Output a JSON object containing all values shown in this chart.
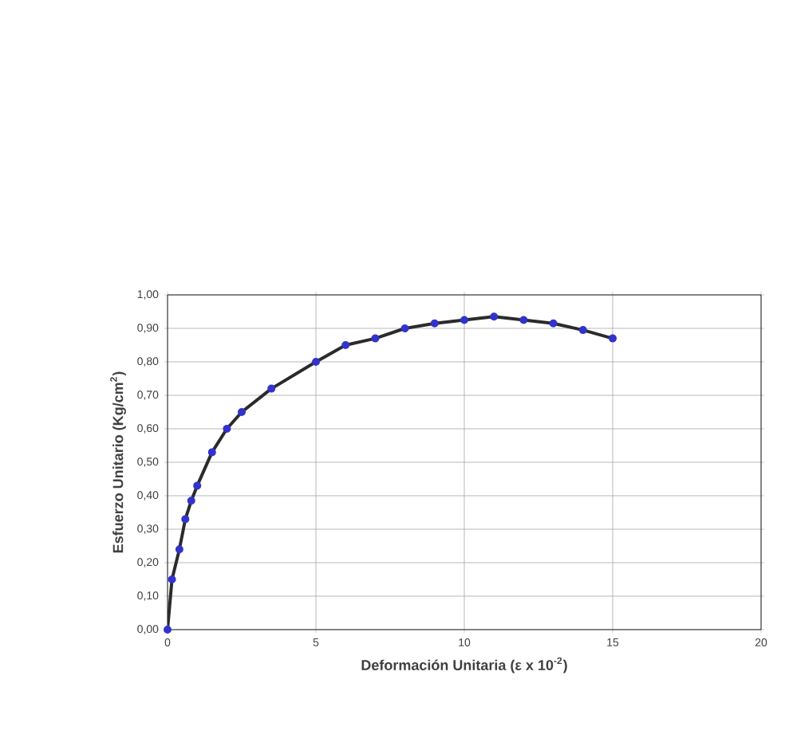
{
  "chart_data": {
    "type": "line",
    "xlabel": "Deformación Unitaria (ε x 10$^{-2}$)",
    "ylabel": "Esfuerzo Unitario (Kg/cm$^{2}$)",
    "x": [
      0,
      0.15,
      0.4,
      0.6,
      0.8,
      1.0,
      1.5,
      2,
      2.5,
      3.5,
      5,
      6,
      7,
      8,
      9,
      10,
      11,
      12,
      13,
      14,
      15
    ],
    "series": [
      {
        "color": "#2b2b2b",
        "values": [
          0,
          0.15,
          0.24,
          0.33,
          0.385,
          0.43,
          0.53,
          0.6,
          0.65,
          0.72,
          0.8,
          0.85,
          0.87,
          0.9,
          0.915,
          0.925,
          0.935,
          0.925,
          0.915,
          0.895,
          0.87
        ]
      }
    ],
    "marker": "circle",
    "line_style": "solid",
    "grid": true,
    "xlim": [
      0,
      20
    ],
    "xticks": [
      0,
      5,
      10,
      15,
      20
    ],
    "ylim": [
      0,
      1
    ],
    "yticks": [
      {
        "value": 0,
        "label": "0,00"
      },
      {
        "value": 0.1,
        "label": "0,10"
      },
      {
        "value": 0.2,
        "label": "0,20"
      },
      {
        "value": 0.3,
        "label": "0,30"
      },
      {
        "value": 0.4,
        "label": "0,40"
      },
      {
        "value": 0.5,
        "label": "0,50"
      },
      {
        "value": 0.6,
        "label": "0,60"
      },
      {
        "value": 0.7,
        "label": "0,70"
      },
      {
        "value": 0.8,
        "label": "0,80"
      },
      {
        "value": 0.9,
        "label": "0,90"
      },
      {
        "value": 1,
        "label": "1,00"
      }
    ]
  }
}
